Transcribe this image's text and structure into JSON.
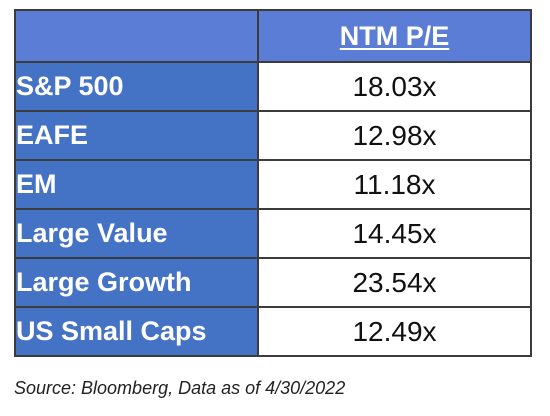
{
  "table": {
    "column_header": "NTM P/E",
    "rows": [
      {
        "label": "S&P 500",
        "value": "18.03x"
      },
      {
        "label": "EAFE",
        "value": "12.98x"
      },
      {
        "label": "EM",
        "value": "11.18x"
      },
      {
        "label": "Large Value",
        "value": "14.45x"
      },
      {
        "label": "Large Growth",
        "value": "23.54x"
      },
      {
        "label": "US Small Caps",
        "value": "12.49x"
      }
    ]
  },
  "source": "Source: Bloomberg, Data as of 4/30/2022",
  "colors": {
    "header_fill": "#5b7dd6",
    "label_fill": "#4472c4",
    "border": "#3c3c3c"
  }
}
